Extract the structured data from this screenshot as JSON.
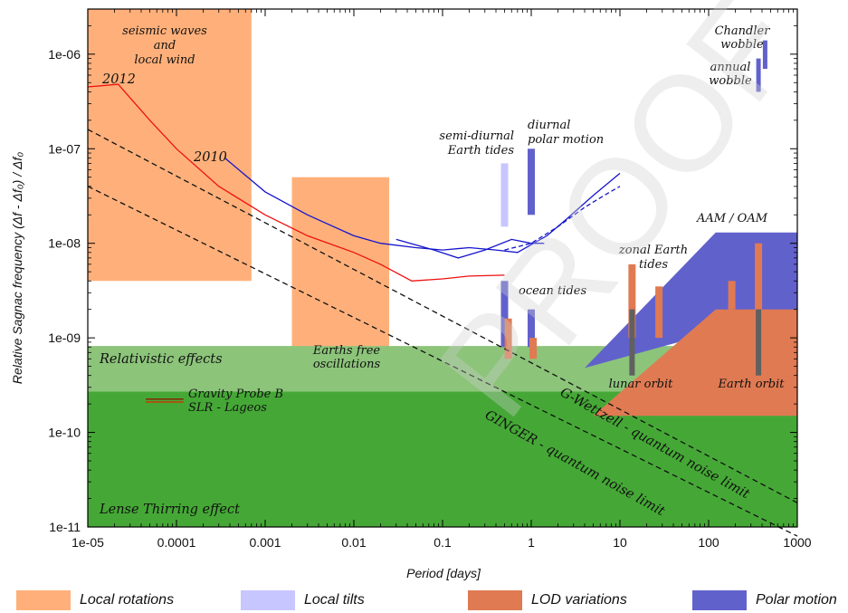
{
  "chart_data": {
    "type": "line",
    "xlabel": "Period [days]",
    "ylabel": "Relative Sagnac frequency (Δf - Δf₀) / Δf₀",
    "x_scale": "log",
    "y_scale": "log",
    "xlim": [
      1e-05,
      1000
    ],
    "ylim": [
      1e-11,
      3e-06
    ],
    "x_ticks": [
      "1e-05",
      "0.0001",
      "0.001",
      "0.01",
      "0.1",
      "1",
      "10",
      "100",
      "1000"
    ],
    "y_ticks": [
      "1e-11",
      "1e-10",
      "1e-09",
      "1e-08",
      "1e-07",
      "1e-06"
    ],
    "grid": false,
    "colors": {
      "local_rotations": "#ffb07a",
      "local_tilts": "#c8c6ff",
      "lod_variations": "#e07a52",
      "polar_motion": "#6161cc",
      "relativistic": "#8cc47a",
      "lense_thirring": "#45a836",
      "curve_2012": "#ee1111",
      "curve_2010": "#1515cc",
      "earth_orbit_bar": "#606060",
      "gravity_probe_b": "#8b1a00",
      "lageos": "#cc3300"
    },
    "regions": [
      {
        "category": "Local rotations",
        "label": "seismic waves and local wind",
        "x": [
          1e-05,
          0.0007
        ],
        "y": [
          4e-09,
          3e-06
        ]
      },
      {
        "category": "Local rotations",
        "label": "Earths free oscillations",
        "x": [
          0.002,
          0.025
        ],
        "y": [
          4e-10,
          5e-08
        ]
      },
      {
        "category": "Relativistic",
        "label": "Relativistic effects",
        "x": [
          1e-05,
          1000
        ],
        "y": [
          2.7e-10,
          8.2e-10
        ]
      },
      {
        "category": "Relativistic",
        "label": "Lense Thirring effect",
        "x": [
          1e-05,
          1000
        ],
        "y": [
          1e-11,
          2.7e-10
        ]
      }
    ],
    "series": [
      {
        "name": "2012",
        "x": [
          1e-05,
          2.2e-05,
          5e-05,
          0.0001,
          0.0003,
          0.001,
          0.003,
          0.01,
          0.02,
          0.045,
          0.1,
          0.2,
          0.5
        ],
        "y": [
          4.5e-07,
          4.8e-07,
          2e-07,
          1e-07,
          4e-08,
          2e-08,
          1.2e-08,
          8e-09,
          6e-09,
          4e-09,
          4.2e-09,
          4.5e-09,
          4.6e-09
        ]
      },
      {
        "name": "2010",
        "x": [
          0.00035,
          0.001,
          0.003,
          0.01,
          0.02,
          0.05,
          0.1,
          0.2,
          0.4,
          0.7,
          1.5,
          2.5,
          5,
          10
        ],
        "y": [
          8e-08,
          3.5e-08,
          2e-08,
          1.2e-08,
          1e-08,
          9e-09,
          8.5e-09,
          9e-09,
          8.5e-09,
          8e-09,
          1.2e-08,
          1.8e-08,
          3.2e-08,
          5.5e-08
        ]
      },
      {
        "name": "2010 (alt)",
        "x": [
          0.03,
          0.08,
          0.15,
          0.3,
          0.6,
          1,
          1.4
        ],
        "y": [
          1.1e-08,
          8.5e-09,
          7e-09,
          8.5e-09,
          1.1e-08,
          1e-08,
          1e-08
        ]
      },
      {
        "name": "2010 (dashed)",
        "x": [
          0.5,
          1,
          2,
          4,
          7,
          10
        ],
        "y": [
          8.5e-09,
          1e-08,
          1.5e-08,
          2.4e-08,
          3.3e-08,
          4e-08
        ]
      },
      {
        "name": "G-Wettzell - quantum noise limit",
        "x": [
          1e-05,
          1000
        ],
        "y": [
          1.6e-07,
          1.8e-11
        ]
      },
      {
        "name": "GINGER - quantum noise limit",
        "x": [
          1e-05,
          1000
        ],
        "y": [
          4e-08,
          8e-12
        ]
      }
    ],
    "bars": [
      {
        "category": "Local tilts",
        "label": "semi-diurnal Earth tides",
        "x": 0.5,
        "y": [
          1.5e-08,
          7e-08
        ]
      },
      {
        "category": "Polar motion",
        "label": "diurnal polar motion",
        "x": 1.0,
        "y": [
          2e-08,
          1e-07
        ]
      },
      {
        "category": "Polar motion",
        "label": "ocean tides",
        "x": 0.5,
        "y": [
          8e-10,
          4e-09
        ]
      },
      {
        "category": "Polar motion",
        "label": "ocean tides",
        "x": 1.0,
        "y": [
          8e-10,
          2e-09
        ]
      },
      {
        "category": "LOD variations",
        "label": "ocean tides",
        "x": 0.55,
        "y": [
          6e-10,
          1.6e-09
        ]
      },
      {
        "category": "LOD variations",
        "label": "ocean tides",
        "x": 1.05,
        "y": [
          6e-10,
          1e-09
        ]
      },
      {
        "category": "LOD variations",
        "label": "zonal Earth tides",
        "x": 13.7,
        "y": [
          1e-09,
          6e-09
        ]
      },
      {
        "category": "LOD variations",
        "label": "zonal Earth tides",
        "x": 27.5,
        "y": [
          1e-09,
          3.5e-09
        ]
      },
      {
        "category": "LOD variations",
        "label": "Earth orbit",
        "x": 182.5,
        "y": [
          2e-09,
          4e-09
        ]
      },
      {
        "category": "LOD variations",
        "label": "Earth orbit",
        "x": 365,
        "y": [
          2e-09,
          1e-08
        ]
      },
      {
        "category": "Orbit",
        "label": "lunar orbit",
        "x": 13.7,
        "y": [
          4e-10,
          2e-09
        ]
      },
      {
        "category": "Orbit",
        "label": "Earth orbit",
        "x": 365,
        "y": [
          4e-10,
          2e-09
        ]
      },
      {
        "category": "Polar motion",
        "label": "Chandler wobble",
        "x": 433,
        "y": [
          7e-07,
          1.4e-06
        ]
      },
      {
        "category": "Polar motion",
        "label": "annual wobble",
        "x": 365,
        "y": [
          4e-07,
          9e-07
        ]
      }
    ],
    "polygons": [
      {
        "category": "Polar motion",
        "label": "AAM / OAM",
        "points": [
          [
            4,
            4.8e-10
          ],
          [
            120,
            1.3e-08
          ],
          [
            1000,
            1.3e-08
          ],
          [
            1000,
            2e-09
          ]
        ]
      },
      {
        "category": "LOD variations",
        "label": "",
        "points": [
          [
            5,
            1.5e-10
          ],
          [
            120,
            2e-09
          ],
          [
            1000,
            2e-09
          ],
          [
            1000,
            1.5e-10
          ]
        ]
      }
    ],
    "short_lines": [
      {
        "label": "Gravity Probe B",
        "x": [
          4.5e-05,
          0.00012
        ],
        "y": 2.25e-10
      },
      {
        "label": "SLR - Lageos",
        "x": [
          4.5e-05,
          0.00012
        ],
        "y": 2.1e-10
      }
    ],
    "annotations": [
      {
        "id": "seismic",
        "lines": [
          "seismic waves",
          "and",
          "local wind"
        ]
      },
      {
        "id": "label2012",
        "lines": [
          "2012"
        ]
      },
      {
        "id": "label2010",
        "lines": [
          "2010"
        ]
      },
      {
        "id": "semidiurnal",
        "lines": [
          "semi-diurnal",
          "Earth tides"
        ]
      },
      {
        "id": "diurnal",
        "lines": [
          "diurnal",
          "polar motion"
        ]
      },
      {
        "id": "chandler",
        "lines": [
          "Chandler",
          "wobble"
        ]
      },
      {
        "id": "annual",
        "lines": [
          "annual",
          "wobble"
        ]
      },
      {
        "id": "aam",
        "lines": [
          "AAM / OAM"
        ]
      },
      {
        "id": "zonal",
        "lines": [
          "zonal Earth",
          "tides"
        ]
      },
      {
        "id": "ocean",
        "lines": [
          "ocean tides"
        ]
      },
      {
        "id": "freeosc",
        "lines": [
          "Earths free",
          "oscillations"
        ]
      },
      {
        "id": "relativistic",
        "lines": [
          "Relativistic effects"
        ]
      },
      {
        "id": "gpb",
        "lines": [
          "Gravity Probe B",
          "SLR - Lageos"
        ]
      },
      {
        "id": "lense",
        "lines": [
          "Lense Thirring effect"
        ]
      },
      {
        "id": "lunar",
        "lines": [
          "lunar orbit"
        ]
      },
      {
        "id": "earthorbit",
        "lines": [
          "Earth orbit"
        ]
      },
      {
        "id": "gwettzell",
        "lines": [
          "G-Wettzell - quantum noise limit"
        ]
      },
      {
        "id": "ginger",
        "lines": [
          "GINGER - quantum noise limit"
        ]
      }
    ],
    "watermark": "PROOF"
  },
  "legend": [
    {
      "label": "Local rotations",
      "color": "#ffb07a"
    },
    {
      "label": "Local tilts",
      "color": "#c8c6ff"
    },
    {
      "label": "LOD variations",
      "color": "#e07a52"
    },
    {
      "label": "Polar motion",
      "color": "#6161cc"
    }
  ]
}
